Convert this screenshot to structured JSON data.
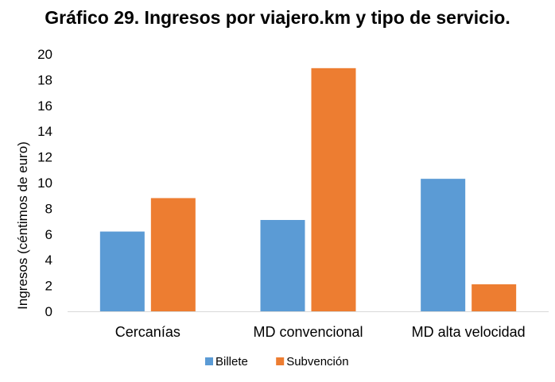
{
  "chart_data": {
    "type": "bar",
    "title": "Gráfico 29. Ingresos por viajero.km y tipo de servicio.",
    "ylabel": "Ingresos  (céntimos de euro)",
    "xlabel": "",
    "categories": [
      "Cercanías",
      "MD convencional",
      "MD alta velocidad"
    ],
    "series": [
      {
        "name": "Billete",
        "color": "#5b9bd5",
        "values": [
          6.2,
          7.1,
          10.3
        ]
      },
      {
        "name": "Subvención",
        "color": "#ed7d31",
        "values": [
          8.8,
          18.9,
          2.1
        ]
      }
    ],
    "ylim": [
      0,
      20
    ],
    "yticks": [
      "0",
      "2",
      "4",
      "6",
      "8",
      "10",
      "12",
      "14",
      "16",
      "18",
      "20"
    ],
    "grid": false,
    "legend_position": "bottom"
  }
}
